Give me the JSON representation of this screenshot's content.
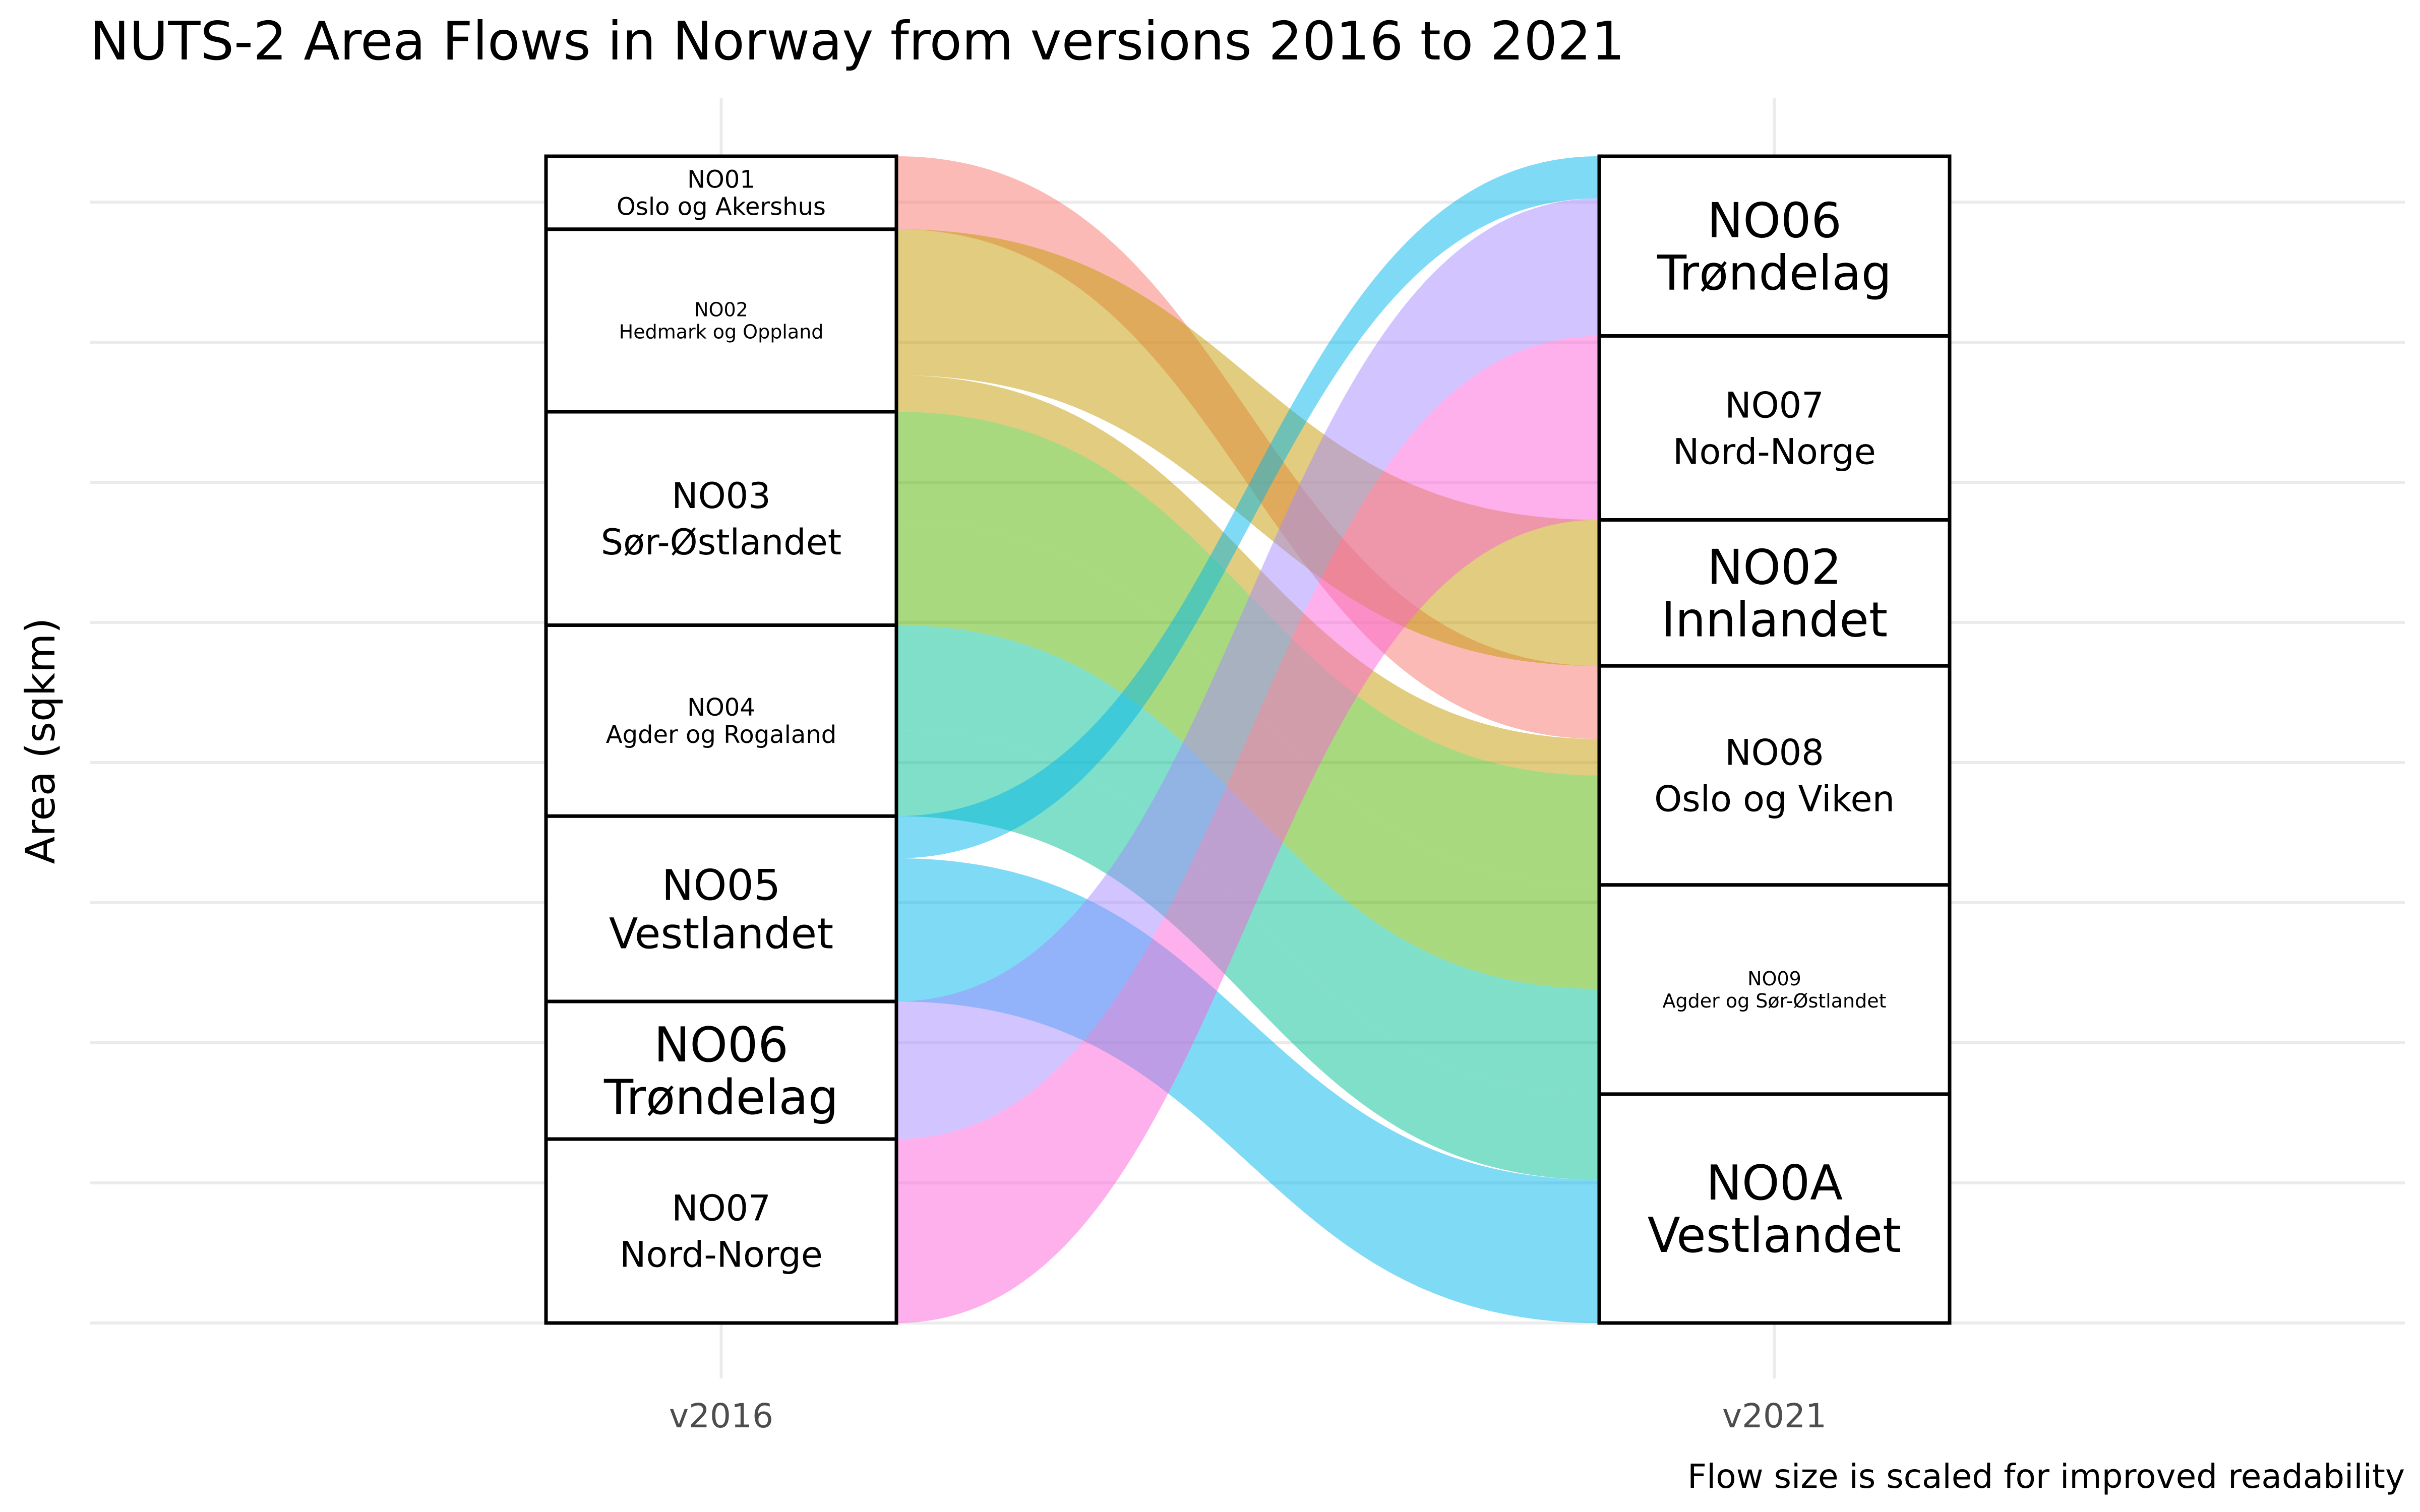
{
  "chart_data": {
    "type": "alluvial",
    "title": "NUTS-2 Area Flows in Norway from versions 2016 to 2021",
    "ylabel": "Area (sqkm)",
    "caption": "Flow size is scaled for improved readability",
    "x_categories": [
      "v2016",
      "v2021"
    ],
    "nodes_2016": [
      {
        "code": "NO01",
        "name": "Oslo og Akershus",
        "value": 5.2,
        "label_size": "small"
      },
      {
        "code": "NO02",
        "name": "Hedmark og Oppland",
        "value": 13.0,
        "label_size": "tiny"
      },
      {
        "code": "NO03",
        "name": "Sør-Østlandet",
        "value": 15.2,
        "label_size": "medium"
      },
      {
        "code": "NO04",
        "name": "Agder og Rogaland",
        "value": 13.6,
        "label_size": "small"
      },
      {
        "code": "NO05",
        "name": "Vestlandet",
        "value": 13.2,
        "label_size": "large"
      },
      {
        "code": "NO06",
        "name": "Trøndelag",
        "value": 9.8,
        "label_size": "xlarge"
      },
      {
        "code": "NO07",
        "name": "Nord-Norge",
        "value": 13.1,
        "label_size": "medium"
      }
    ],
    "nodes_2021": [
      {
        "code": "NO06",
        "name": "Trøndelag",
        "value": 12.8,
        "label_size": "xlarge"
      },
      {
        "code": "NO07",
        "name": "Nord-Norge",
        "value": 13.1,
        "label_size": "medium"
      },
      {
        "code": "NO02",
        "name": "Innlandet",
        "value": 10.4,
        "label_size": "xlarge"
      },
      {
        "code": "NO08",
        "name": "Oslo og Viken",
        "value": 15.6,
        "label_size": "medium"
      },
      {
        "code": "NO09",
        "name": "Agder og Sør-Østlandet",
        "value": 14.9,
        "label_size": "tiny"
      },
      {
        "code": "NO0A",
        "name": "Vestlandet",
        "value": 16.3,
        "label_size": "xlarge"
      }
    ],
    "flows": [
      {
        "from": "NO01",
        "to": "NO08",
        "value": 5.2,
        "color": "#f8766d"
      },
      {
        "from": "NO02",
        "to": "NO02",
        "value": 10.4,
        "color": "#c49a00"
      },
      {
        "from": "NO02",
        "to": "NO08",
        "value": 2.6,
        "color": "#c49a00"
      },
      {
        "from": "NO03",
        "to": "NO08",
        "value": 7.8,
        "color": "#53b400"
      },
      {
        "from": "NO03",
        "to": "NO09",
        "value": 7.4,
        "color": "#53b400"
      },
      {
        "from": "NO04",
        "to": "NO09",
        "value": 7.5,
        "color": "#00c094"
      },
      {
        "from": "NO04",
        "to": "NO0A",
        "value": 6.1,
        "color": "#00c094"
      },
      {
        "from": "NO05",
        "to": "NO06",
        "value": 3.0,
        "color": "#00b6eb"
      },
      {
        "from": "NO05",
        "to": "NO0A",
        "value": 10.2,
        "color": "#00b6eb"
      },
      {
        "from": "NO06",
        "to": "NO06",
        "value": 9.8,
        "color": "#a58aff"
      },
      {
        "from": "NO07",
        "to": "NO07",
        "value": 13.1,
        "color": "#fb61d7"
      }
    ],
    "grid": true
  }
}
